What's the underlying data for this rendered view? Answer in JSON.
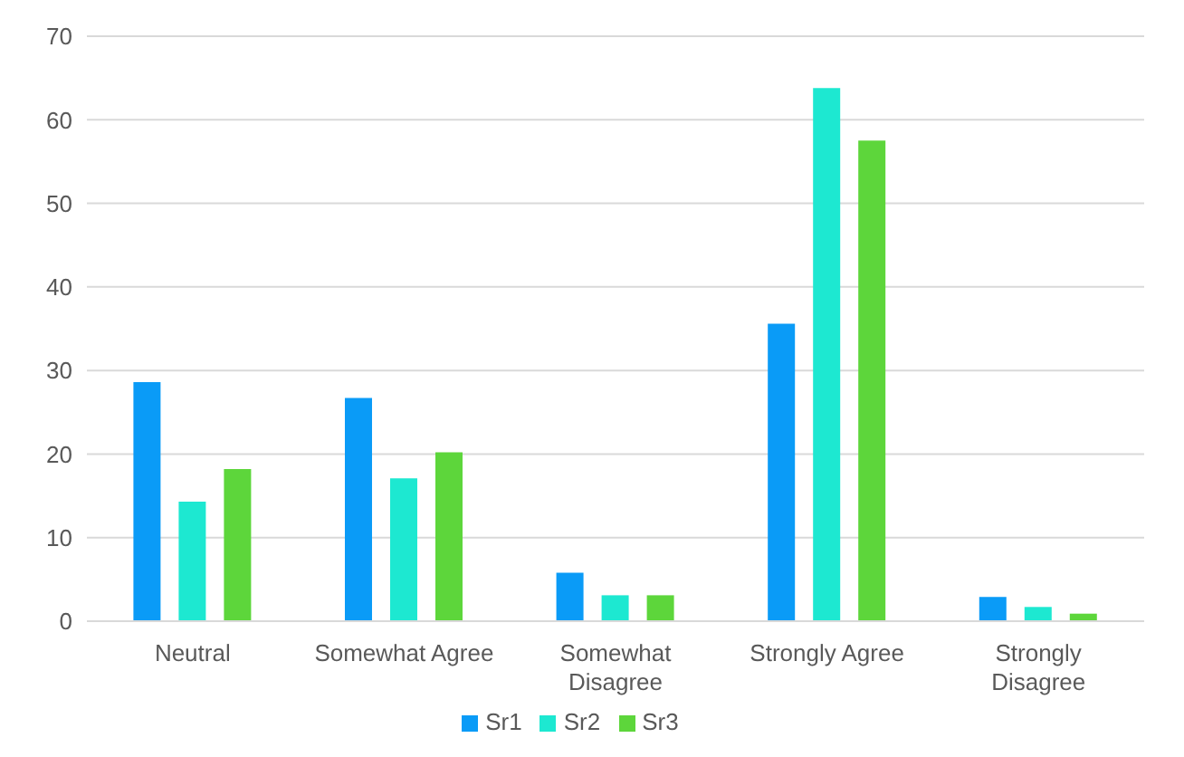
{
  "chart_data": {
    "type": "bar",
    "categories": [
      "Neutral",
      "Somewhat Agree",
      "Somewhat Disagree",
      "Strongly Agree",
      "Strongly Disagree"
    ],
    "series": [
      {
        "name": "Sr1",
        "color": "#0a9bf7",
        "values": [
          28.6,
          26.7,
          5.8,
          35.6,
          2.9
        ]
      },
      {
        "name": "Sr2",
        "color": "#1de8d1",
        "values": [
          14.3,
          17.1,
          3.1,
          63.8,
          1.7
        ]
      },
      {
        "name": "Sr3",
        "color": "#5dd63b",
        "values": [
          18.2,
          20.2,
          3.1,
          57.5,
          0.9
        ]
      }
    ],
    "ylim": [
      0,
      70
    ],
    "yticks": [
      0,
      10,
      20,
      30,
      40,
      50,
      60,
      70
    ],
    "grid": "y",
    "legend": "bottom"
  }
}
